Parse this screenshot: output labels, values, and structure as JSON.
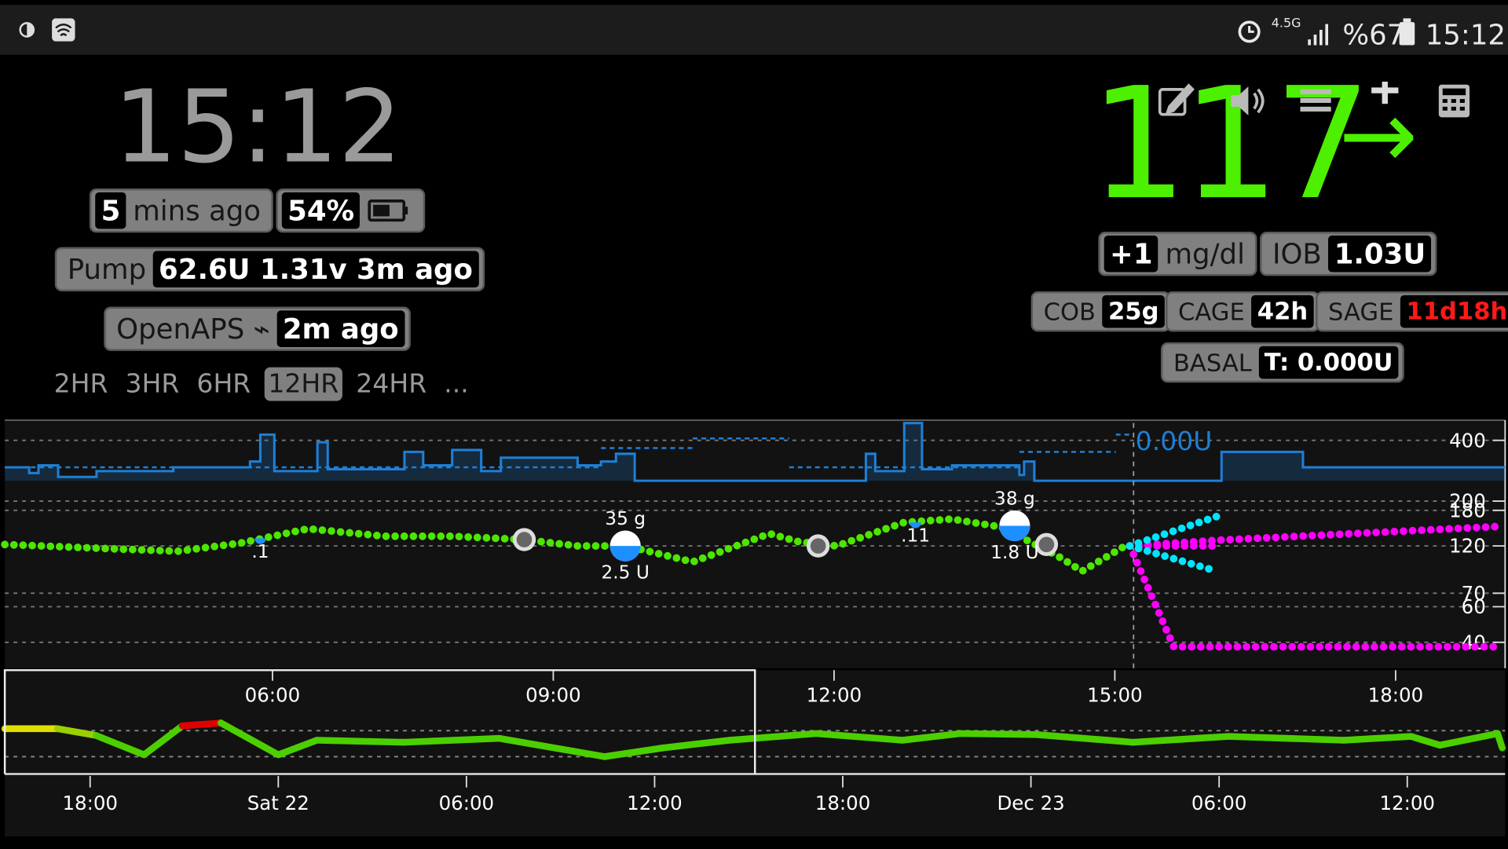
{
  "status_bar": {
    "network": "4.5G",
    "battery": "%67",
    "time": "15:12"
  },
  "header": {
    "clock": "15:12",
    "age": {
      "value": "5",
      "label": "mins ago"
    },
    "uploader_battery": "54%",
    "pump": {
      "label": "Pump",
      "value": "62.6U 1.31v 3m ago"
    },
    "loop": {
      "label": "OpenAPS ⌁",
      "value": "2m ago"
    },
    "ranges": [
      "2HR",
      "3HR",
      "6HR",
      "12HR",
      "24HR",
      "..."
    ],
    "selected_range": 3,
    "bg": "117",
    "direction": "→",
    "delta": {
      "value": "+1",
      "label": "mg/dl"
    },
    "iob": {
      "label": "IOB",
      "value": "1.03U"
    },
    "cob": {
      "label": "COB",
      "value": "25g"
    },
    "cage": {
      "label": "CAGE",
      "value": "42h"
    },
    "sage": {
      "label": "SAGE",
      "value": "11d18h",
      "color": "#ff1a1a"
    },
    "basal": {
      "label": "BASAL",
      "value": "T: 0.000U"
    }
  },
  "chart_data": [
    {
      "type": "line",
      "scale": "log",
      "xlim": [
        3.14,
        19.17
      ],
      "xticks": [
        {
          "value": 6,
          "label": "06:00"
        },
        {
          "value": 9,
          "label": "09:00"
        },
        {
          "value": 12,
          "label": "12:00"
        },
        {
          "value": 15,
          "label": "15:00"
        },
        {
          "value": 18,
          "label": "18:00"
        }
      ],
      "ylim": [
        40,
        400
      ],
      "yticks": [
        400,
        200,
        180,
        120,
        70,
        60,
        40
      ],
      "grid": true,
      "now": 15.2,
      "series": [
        {
          "color": "#4ce600",
          "x": [
            3.14,
            4.12,
            4.99,
            5.66,
            6.38,
            7.2,
            7.92,
            8.69,
            9.26,
            9.78,
            10.49,
            11.31,
            11.62,
            12.03,
            12.75,
            13.26,
            13.78,
            14.39,
            14.65,
            15.11
          ],
          "values": [
            122,
            117,
            113,
            124,
            146,
            134,
            134,
            129,
            120,
            120,
            100,
            138,
            126,
            120,
            157,
            163,
            149,
            107,
            90,
            120
          ]
        },
        {
          "color": "#ff00ff",
          "x": [
            15.16,
            16.09,
            19.12
          ],
          "values": [
            120,
            128,
            150
          ]
        },
        {
          "color": "#ff00ff",
          "x": [
            15.16,
            16.09
          ],
          "values": [
            120,
            120
          ]
        },
        {
          "color": "#ff00ff",
          "x": [
            15.16,
            15.63,
            19.12
          ],
          "values": [
            120,
            38,
            38
          ]
        },
        {
          "color": "#00e5ff",
          "x": [
            15.16,
            16.09
          ],
          "values": [
            120,
            168
          ]
        },
        {
          "color": "#00e5ff",
          "x": [
            15.16,
            16.09
          ],
          "values": [
            120,
            90
          ]
        }
      ],
      "treatments": [
        {
          "x": 9.77,
          "value": 120,
          "carbs": "35 g",
          "insulin": "2.5 U"
        },
        {
          "x": 13.93,
          "value": 151,
          "carbs": "38 g",
          "insulin": "1.8 U"
        },
        {
          "x": 5.87,
          "value": 131,
          "insulin": ".1"
        },
        {
          "x": 12.87,
          "value": 157,
          "insulin": ".11"
        }
      ],
      "notes": [
        {
          "x": 8.69,
          "value": 129
        },
        {
          "x": 11.83,
          "value": 120
        },
        {
          "x": 14.27,
          "value": 122
        }
      ],
      "basal": {
        "color": "#1e7fd6",
        "label": "0.00U",
        "ylim": [
          0,
          3
        ],
        "x": [
          3.14,
          3.4,
          3.5,
          3.71,
          4.12,
          4.94,
          5.76,
          5.87,
          6.02,
          6.48,
          6.59,
          7.41,
          7.61,
          7.92,
          8.23,
          8.44,
          9.26,
          9.51,
          9.67,
          9.87,
          12.34,
          12.44,
          12.75,
          12.94,
          13.26,
          13.98,
          14.03,
          14.14,
          16.14,
          17.01
        ],
        "values": [
          0.7,
          0.4,
          0.8,
          0.2,
          0.5,
          0.7,
          1.0,
          2.4,
          0.5,
          2.0,
          0.6,
          1.5,
          0.8,
          1.6,
          0.5,
          1.2,
          0.8,
          1.0,
          1.4,
          0,
          1.4,
          0.5,
          3.0,
          0.6,
          0.8,
          0.3,
          1.0,
          0,
          1.5,
          0.7
        ],
        "scheduled_x": [
          3.14,
          9.51,
          10.49,
          11.52,
          13.98,
          15.01
        ],
        "scheduled": [
          0.7,
          1.7,
          2.2,
          0.7,
          1.5,
          2.4
        ]
      }
    },
    {
      "type": "line",
      "scale": "log",
      "xlim": [
        15.28,
        63.12
      ],
      "xticks": [
        {
          "value": 18,
          "label": "18:00"
        },
        {
          "value": 24,
          "label": "Sat 22"
        },
        {
          "value": 30,
          "label": "06:00"
        },
        {
          "value": 36,
          "label": "12:00"
        },
        {
          "value": 42,
          "label": "18:00"
        },
        {
          "value": 48,
          "label": "Dec 23"
        },
        {
          "value": 54,
          "label": "06:00"
        },
        {
          "value": 60,
          "label": "12:00"
        }
      ],
      "ylim": [
        40,
        400
      ],
      "yticks": [
        70,
        180
      ],
      "window": [
        3.14,
        15.2
      ],
      "series": [
        {
          "color": "#4ccf00",
          "x": [
            15.28,
            16.96,
            18.19,
            19.72,
            20.94,
            22.17,
            24.0,
            25.23,
            28.0,
            31.04,
            34.41,
            36.25,
            38.39,
            41.15,
            43.9,
            45.74,
            48.18,
            51.25,
            54.31,
            57.98,
            60.12,
            61.04,
            62.88,
            63.03
          ],
          "values": [
            193,
            193,
            151,
            75,
            214,
            238,
            75,
            127,
            118,
            136,
            70,
            96,
            127,
            162,
            127,
            162,
            156,
            118,
            146,
            127,
            146,
            106,
            162,
            96
          ],
          "segment_colors": [
            "#e0e000",
            "#9ad000",
            "#4ccf00",
            "#4ccf00",
            "#e00000",
            "#4ccf00",
            "#4ccf00",
            "#4ccf00",
            "#4ccf00",
            "#4ccf00",
            "#4ccf00",
            "#4ccf00",
            "#4ccf00",
            "#4ccf00",
            "#4ccf00",
            "#4ccf00",
            "#4ccf00",
            "#4ccf00",
            "#4ccf00",
            "#4ccf00",
            "#4ccf00",
            "#4ccf00",
            "#4ccf00"
          ]
        }
      ]
    }
  ]
}
